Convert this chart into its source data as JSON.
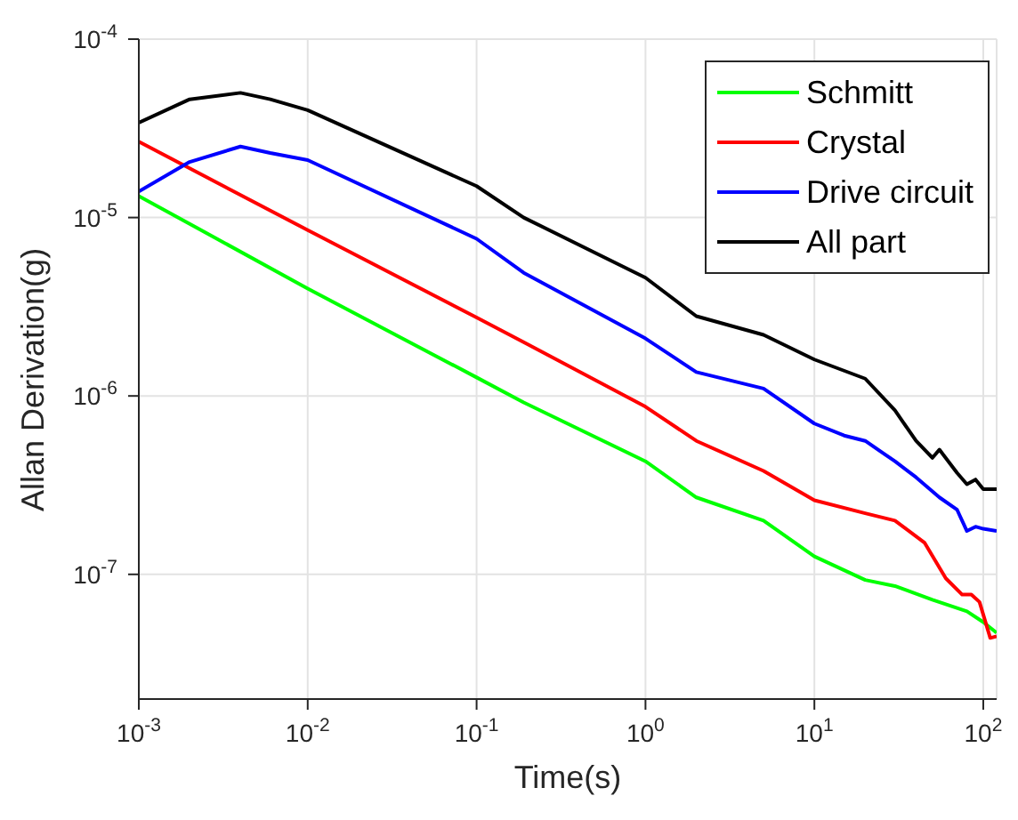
{
  "chart_data": {
    "type": "line",
    "xlabel": "Time(s)",
    "ylabel": "Allan Derivation(g)",
    "log": "xy",
    "grid": true,
    "legend": "top right",
    "marker": "none",
    "line_style": "solid",
    "xlim": [
      0.001,
      120
    ],
    "ylim": [
      2e-08,
      0.0001
    ],
    "xticks": [
      {
        "value": 0.001,
        "label": "10$^{-3}$"
      },
      {
        "value": 0.01,
        "label": "10$^{-2}$"
      },
      {
        "value": 0.1,
        "label": "10$^{-1}$"
      },
      {
        "value": 1,
        "label": "10$^{0}$"
      },
      {
        "value": 10,
        "label": "10$^{1}$"
      },
      {
        "value": 100,
        "label": "10$^{2}$"
      }
    ],
    "yticks": [
      {
        "value": 1e-07,
        "label": "10$^{-7}$"
      },
      {
        "value": 1e-06,
        "label": "10$^{-6}$"
      },
      {
        "value": 1e-05,
        "label": "10$^{-5}$"
      },
      {
        "value": 0.0001,
        "label": "10$^{-4}$"
      }
    ],
    "series": [
      {
        "name": "Schmitt",
        "color": "#00ff00",
        "x": [
          0.001,
          0.01,
          0.1,
          0.19,
          1,
          2,
          5,
          10,
          20,
          30,
          50,
          80,
          100,
          120
        ],
        "values": [
          1.32e-05,
          4e-06,
          1.27e-06,
          9.2e-07,
          4.3e-07,
          2.7e-07,
          2e-07,
          1.26e-07,
          9.3e-08,
          8.6e-08,
          7.2e-08,
          6.2e-08,
          5.4e-08,
          4.7e-08
        ]
      },
      {
        "name": "Crystal",
        "color": "#ff0000",
        "x": [
          0.001,
          0.01,
          0.1,
          0.19,
          1,
          2,
          5,
          10,
          20,
          30,
          45,
          60,
          75,
          85,
          95,
          110,
          120
        ],
        "values": [
          2.66e-05,
          8.5e-06,
          2.75e-06,
          2e-06,
          8.7e-07,
          5.6e-07,
          3.8e-07,
          2.6e-07,
          2.2e-07,
          2e-07,
          1.5e-07,
          9.5e-08,
          7.7e-08,
          7.7e-08,
          7e-08,
          4.4e-08,
          4.5e-08
        ]
      },
      {
        "name": "Drive circuit",
        "color": "#0000ff",
        "x": [
          0.001,
          0.002,
          0.004,
          0.006,
          0.01,
          0.1,
          0.19,
          1,
          2,
          5,
          10,
          15,
          20,
          30,
          40,
          55,
          70,
          80,
          90,
          100,
          120
        ],
        "values": [
          1.4e-05,
          2.05e-05,
          2.5e-05,
          2.3e-05,
          2.1e-05,
          7.6e-06,
          4.9e-06,
          2.1e-06,
          1.36e-06,
          1.1e-06,
          7e-07,
          6e-07,
          5.6e-07,
          4.3e-07,
          3.5e-07,
          2.7e-07,
          2.3e-07,
          1.75e-07,
          1.85e-07,
          1.8e-07,
          1.75e-07
        ]
      },
      {
        "name": "All part",
        "color": "#000000",
        "x": [
          0.001,
          0.002,
          0.004,
          0.006,
          0.01,
          0.1,
          0.19,
          1,
          2,
          5,
          10,
          20,
          30,
          40,
          50,
          55,
          70,
          80,
          90,
          100,
          120
        ],
        "values": [
          3.4e-05,
          4.6e-05,
          5e-05,
          4.6e-05,
          4e-05,
          1.5e-05,
          1e-05,
          4.6e-06,
          2.8e-06,
          2.2e-06,
          1.6e-06,
          1.25e-06,
          8.3e-07,
          5.6e-07,
          4.5e-07,
          5e-07,
          3.7e-07,
          3.2e-07,
          3.4e-07,
          3e-07,
          3e-07
        ]
      }
    ]
  }
}
